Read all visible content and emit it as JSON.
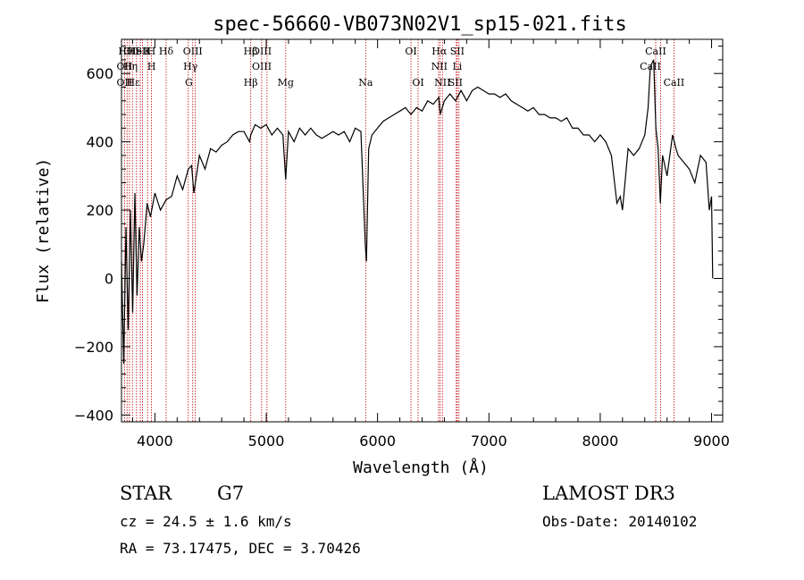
{
  "chart_data": {
    "type": "line",
    "title": "spec-56660-VB073N02V1_sp15-021.fits",
    "xlabel": "Wavelength (Å)",
    "ylabel": "Flux (relative)",
    "xlim": [
      3700,
      9100
    ],
    "ylim": [
      -420,
      700
    ],
    "xticks": [
      4000,
      5000,
      6000,
      7000,
      8000,
      9000
    ],
    "yticks": [
      -400,
      -200,
      0,
      200,
      400,
      600
    ],
    "xtick_labels": [
      "4000",
      "5000",
      "6000",
      "7000",
      "8000",
      "9000"
    ],
    "ytick_labels": [
      "−400",
      "−200",
      "0",
      "200",
      "400",
      "600"
    ],
    "series": [
      {
        "name": "flux",
        "x": [
          3700,
          3720,
          3740,
          3760,
          3780,
          3800,
          3820,
          3840,
          3860,
          3880,
          3900,
          3930,
          3960,
          4000,
          4050,
          4100,
          4150,
          4200,
          4250,
          4300,
          4330,
          4350,
          4400,
          4450,
          4500,
          4550,
          4600,
          4650,
          4700,
          4750,
          4800,
          4850,
          4861,
          4900,
          4950,
          5000,
          5050,
          5100,
          5150,
          5175,
          5200,
          5250,
          5300,
          5350,
          5400,
          5450,
          5500,
          5550,
          5600,
          5650,
          5700,
          5750,
          5800,
          5850,
          5890,
          5900,
          5920,
          5950,
          6000,
          6050,
          6100,
          6150,
          6200,
          6250,
          6300,
          6350,
          6400,
          6450,
          6500,
          6550,
          6563,
          6600,
          6650,
          6700,
          6750,
          6800,
          6850,
          6900,
          6950,
          7000,
          7050,
          7100,
          7150,
          7200,
          7250,
          7300,
          7350,
          7400,
          7450,
          7500,
          7550,
          7600,
          7650,
          7700,
          7750,
          7800,
          7850,
          7900,
          7950,
          8000,
          8050,
          8100,
          8150,
          8180,
          8200,
          8250,
          8300,
          8350,
          8400,
          8430,
          8450,
          8480,
          8500,
          8520,
          8540,
          8560,
          8600,
          8650,
          8680,
          8700,
          8750,
          8800,
          8850,
          8900,
          8950,
          8980,
          9000,
          9010
        ],
        "y": [
          50,
          -250,
          150,
          -150,
          200,
          -100,
          250,
          -50,
          150,
          50,
          100,
          220,
          180,
          250,
          200,
          230,
          240,
          300,
          260,
          320,
          330,
          250,
          360,
          320,
          380,
          370,
          390,
          400,
          420,
          430,
          430,
          400,
          420,
          450,
          440,
          450,
          420,
          440,
          420,
          290,
          430,
          400,
          440,
          420,
          440,
          420,
          410,
          420,
          430,
          420,
          430,
          400,
          440,
          430,
          100,
          50,
          380,
          420,
          440,
          460,
          470,
          480,
          490,
          500,
          480,
          500,
          490,
          520,
          510,
          530,
          480,
          520,
          540,
          520,
          550,
          520,
          550,
          560,
          550,
          540,
          540,
          530,
          540,
          520,
          510,
          500,
          490,
          500,
          480,
          480,
          470,
          470,
          460,
          470,
          440,
          440,
          420,
          420,
          400,
          420,
          400,
          360,
          220,
          240,
          200,
          380,
          360,
          380,
          420,
          500,
          620,
          640,
          440,
          380,
          220,
          360,
          300,
          420,
          380,
          360,
          340,
          320,
          280,
          360,
          340,
          200,
          240,
          0
        ]
      }
    ],
    "line_labels": [
      {
        "row": 1,
        "wl": 3736,
        "label": "Hθ"
      },
      {
        "row": 1,
        "wl": 3787,
        "label": "OII"
      },
      {
        "row": 1,
        "wl": 3838,
        "label": "HeI"
      },
      {
        "row": 1,
        "wl": 3889,
        "label": "SII"
      },
      {
        "row": 1,
        "wl": 3934,
        "label": "K"
      },
      {
        "row": 1,
        "wl": 3968,
        "label": "H"
      },
      {
        "row": 1,
        "wl": 4101,
        "label": "Hδ"
      },
      {
        "row": 1,
        "wl": 4340,
        "label": "OIII"
      },
      {
        "row": 1,
        "wl": 4860,
        "label": "Hβ"
      },
      {
        "row": 1,
        "wl": 4960,
        "label": "OIII"
      },
      {
        "row": 1,
        "wl": 6300,
        "label": "OI"
      },
      {
        "row": 1,
        "wl": 6555,
        "label": "Hα"
      },
      {
        "row": 1,
        "wl": 6716,
        "label": "SII"
      },
      {
        "row": 1,
        "wl": 8498,
        "label": "CaII"
      },
      {
        "row": 2,
        "wl": 3727,
        "label": "OII"
      },
      {
        "row": 2,
        "wl": 3780,
        "label": "Hη"
      },
      {
        "row": 2,
        "wl": 3970,
        "label": "H"
      },
      {
        "row": 2,
        "wl": 4320,
        "label": "Hγ"
      },
      {
        "row": 2,
        "wl": 4960,
        "label": "OIII"
      },
      {
        "row": 2,
        "wl": 6555,
        "label": "NII"
      },
      {
        "row": 2,
        "wl": 6716,
        "label": "Li"
      },
      {
        "row": 2,
        "wl": 8450,
        "label": "CaII"
      },
      {
        "row": 3,
        "wl": 3727,
        "label": "OII"
      },
      {
        "row": 3,
        "wl": 3806,
        "label": "Hε"
      },
      {
        "row": 3,
        "wl": 4305,
        "label": "G"
      },
      {
        "row": 3,
        "wl": 4861,
        "label": "Hβ"
      },
      {
        "row": 3,
        "wl": 5175,
        "label": "Mg"
      },
      {
        "row": 3,
        "wl": 5893,
        "label": "Na"
      },
      {
        "row": 3,
        "wl": 6364,
        "label": "OI"
      },
      {
        "row": 3,
        "wl": 6583,
        "label": "NII"
      },
      {
        "row": 3,
        "wl": 6700,
        "label": "SII"
      },
      {
        "row": 3,
        "wl": 8662,
        "label": "CaII"
      }
    ],
    "line_markers": [
      3727,
      3750,
      3771,
      3798,
      3835,
      3869,
      3889,
      3934,
      3968,
      4101,
      4300,
      4340,
      4363,
      4861,
      4959,
      5007,
      5175,
      5893,
      6300,
      6364,
      6548,
      6563,
      6583,
      6707,
      6716,
      6731,
      8498,
      8542,
      8662
    ]
  },
  "footer": {
    "object_class": "STAR",
    "subclass": "G7",
    "survey": "LAMOST DR3",
    "redshift": "cz = 24.5 ± 1.6 km/s",
    "obs_date": "Obs-Date: 20140102",
    "coords": "RA =  73.17475, DEC =   3.70426"
  }
}
